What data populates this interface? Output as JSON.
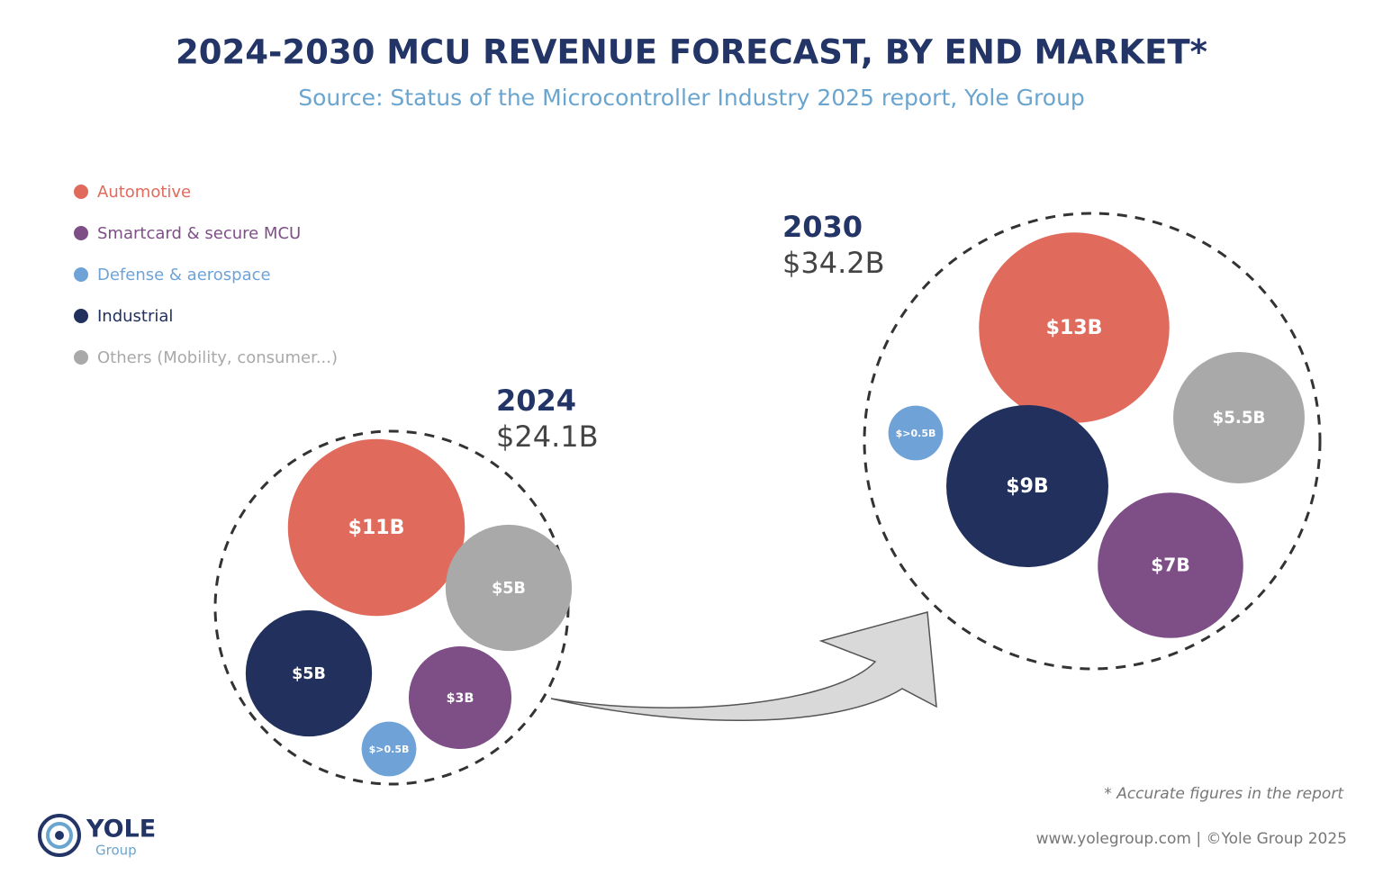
{
  "chart_data": {
    "type": "packed-bubble",
    "title": "2024-2030 MCU REVENUE FORECAST, BY END MARKET*",
    "subtitle": "Source: Status of the Microcontroller Industry 2025 report, Yole Group",
    "categories": [
      "2024",
      "2030"
    ],
    "totals": [
      24.1,
      34.2
    ],
    "total_labels": [
      "$24.1B",
      "$34.2B"
    ],
    "series": [
      {
        "name": "Automotive",
        "color": "#e06a5c",
        "values": [
          11,
          13
        ],
        "value_labels": [
          "$11B",
          "$13B"
        ]
      },
      {
        "name": "Smartcard & secure MCU",
        "color": "#7e4f86",
        "values": [
          3,
          7
        ],
        "value_labels": [
          "$3B",
          "$7B"
        ]
      },
      {
        "name": "Defense & aerospace",
        "color": "#6fa3d8",
        "values": [
          0.5,
          0.5
        ],
        "value_labels": [
          "$>0.5B",
          "$>0.5B"
        ]
      },
      {
        "name": "Industrial",
        "color": "#22305e",
        "values": [
          5,
          9
        ],
        "value_labels": [
          "$5B",
          "$9B"
        ]
      },
      {
        "name": "Others (Mobility, consumer...)",
        "color": "#a9a9a9",
        "values": [
          5,
          5.5
        ],
        "value_labels": [
          "$5B",
          "$5.5B"
        ]
      }
    ],
    "legend": "top-left",
    "footnote": "* Accurate figures in the report",
    "footer": "www.yolegroup.com | ©Yole Group 2025",
    "logo": {
      "name": "YOLE",
      "sub": "Group"
    }
  }
}
